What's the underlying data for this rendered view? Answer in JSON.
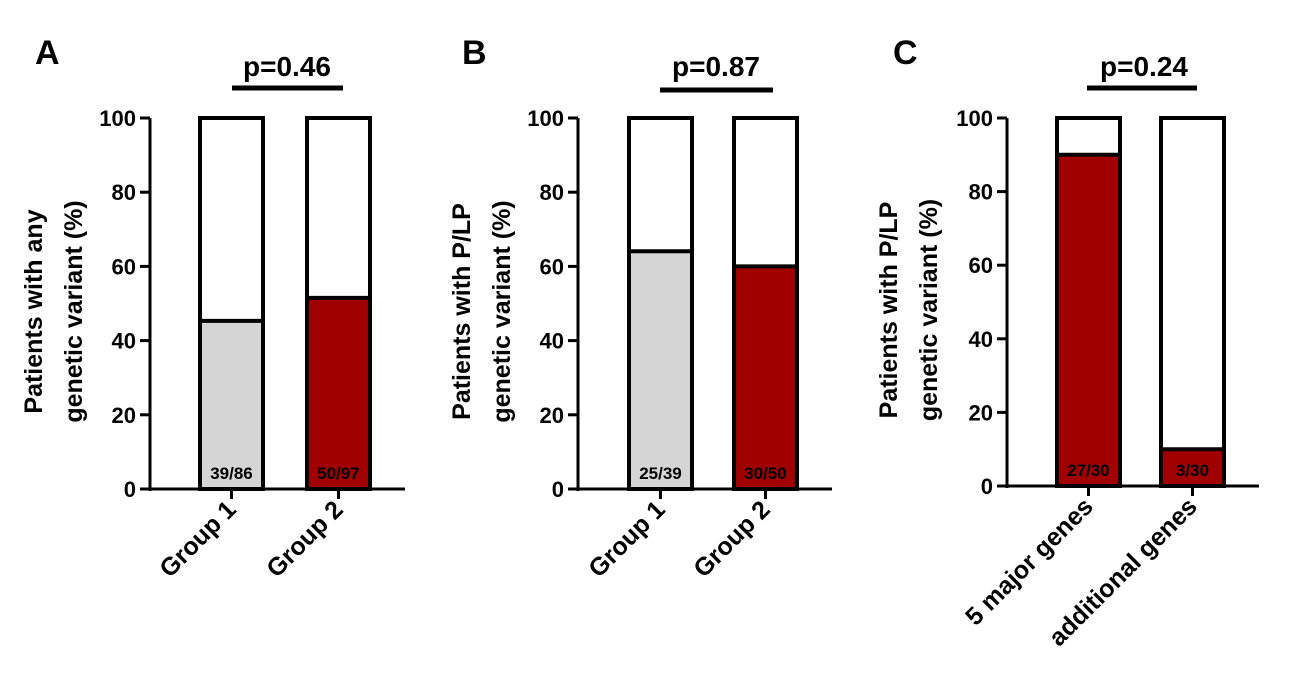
{
  "colors": {
    "red": "#a00000",
    "gray": "#d5d5d5",
    "white": "#ffffff",
    "stroke": "#000000"
  },
  "chart_data": [
    {
      "type": "bar",
      "stacked": true,
      "panel": "A",
      "pvalue": "p=0.46",
      "ylabel": [
        "Patients with any",
        "genetic variant  (%)"
      ],
      "ylim": [
        0,
        100
      ],
      "yticks": [
        "0",
        "20",
        "40",
        "60",
        "80",
        "100"
      ],
      "categories": [
        "Group 1",
        "Group 2"
      ],
      "values": [
        45.3,
        51.5
      ],
      "fill_colors": [
        "gray",
        "red"
      ],
      "bar_labels": [
        "39/86",
        "50/97"
      ]
    },
    {
      "type": "bar",
      "stacked": true,
      "panel": "B",
      "pvalue": "p=0.87",
      "ylabel": [
        "Patients with P/LP",
        "genetic variant  (%)"
      ],
      "ylim": [
        0,
        100
      ],
      "yticks": [
        "0",
        "20",
        "40",
        "60",
        "80",
        "100"
      ],
      "categories": [
        "Group 1",
        "Group 2"
      ],
      "values": [
        64.1,
        60.0
      ],
      "fill_colors": [
        "gray",
        "red"
      ],
      "bar_labels": [
        "25/39",
        "30/50"
      ]
    },
    {
      "type": "bar",
      "stacked": true,
      "panel": "C",
      "pvalue": "p=0.24",
      "ylabel": [
        "Patients with P/LP",
        "genetic variant  (%)"
      ],
      "ylim": [
        0,
        100
      ],
      "yticks": [
        "0",
        "20",
        "40",
        "60",
        "80",
        "100"
      ],
      "categories": [
        "5 major genes",
        "additional genes"
      ],
      "values": [
        90.0,
        10.0
      ],
      "fill_colors": [
        "red",
        "red"
      ],
      "bar_labels": [
        "27/30",
        "3/30"
      ]
    }
  ]
}
